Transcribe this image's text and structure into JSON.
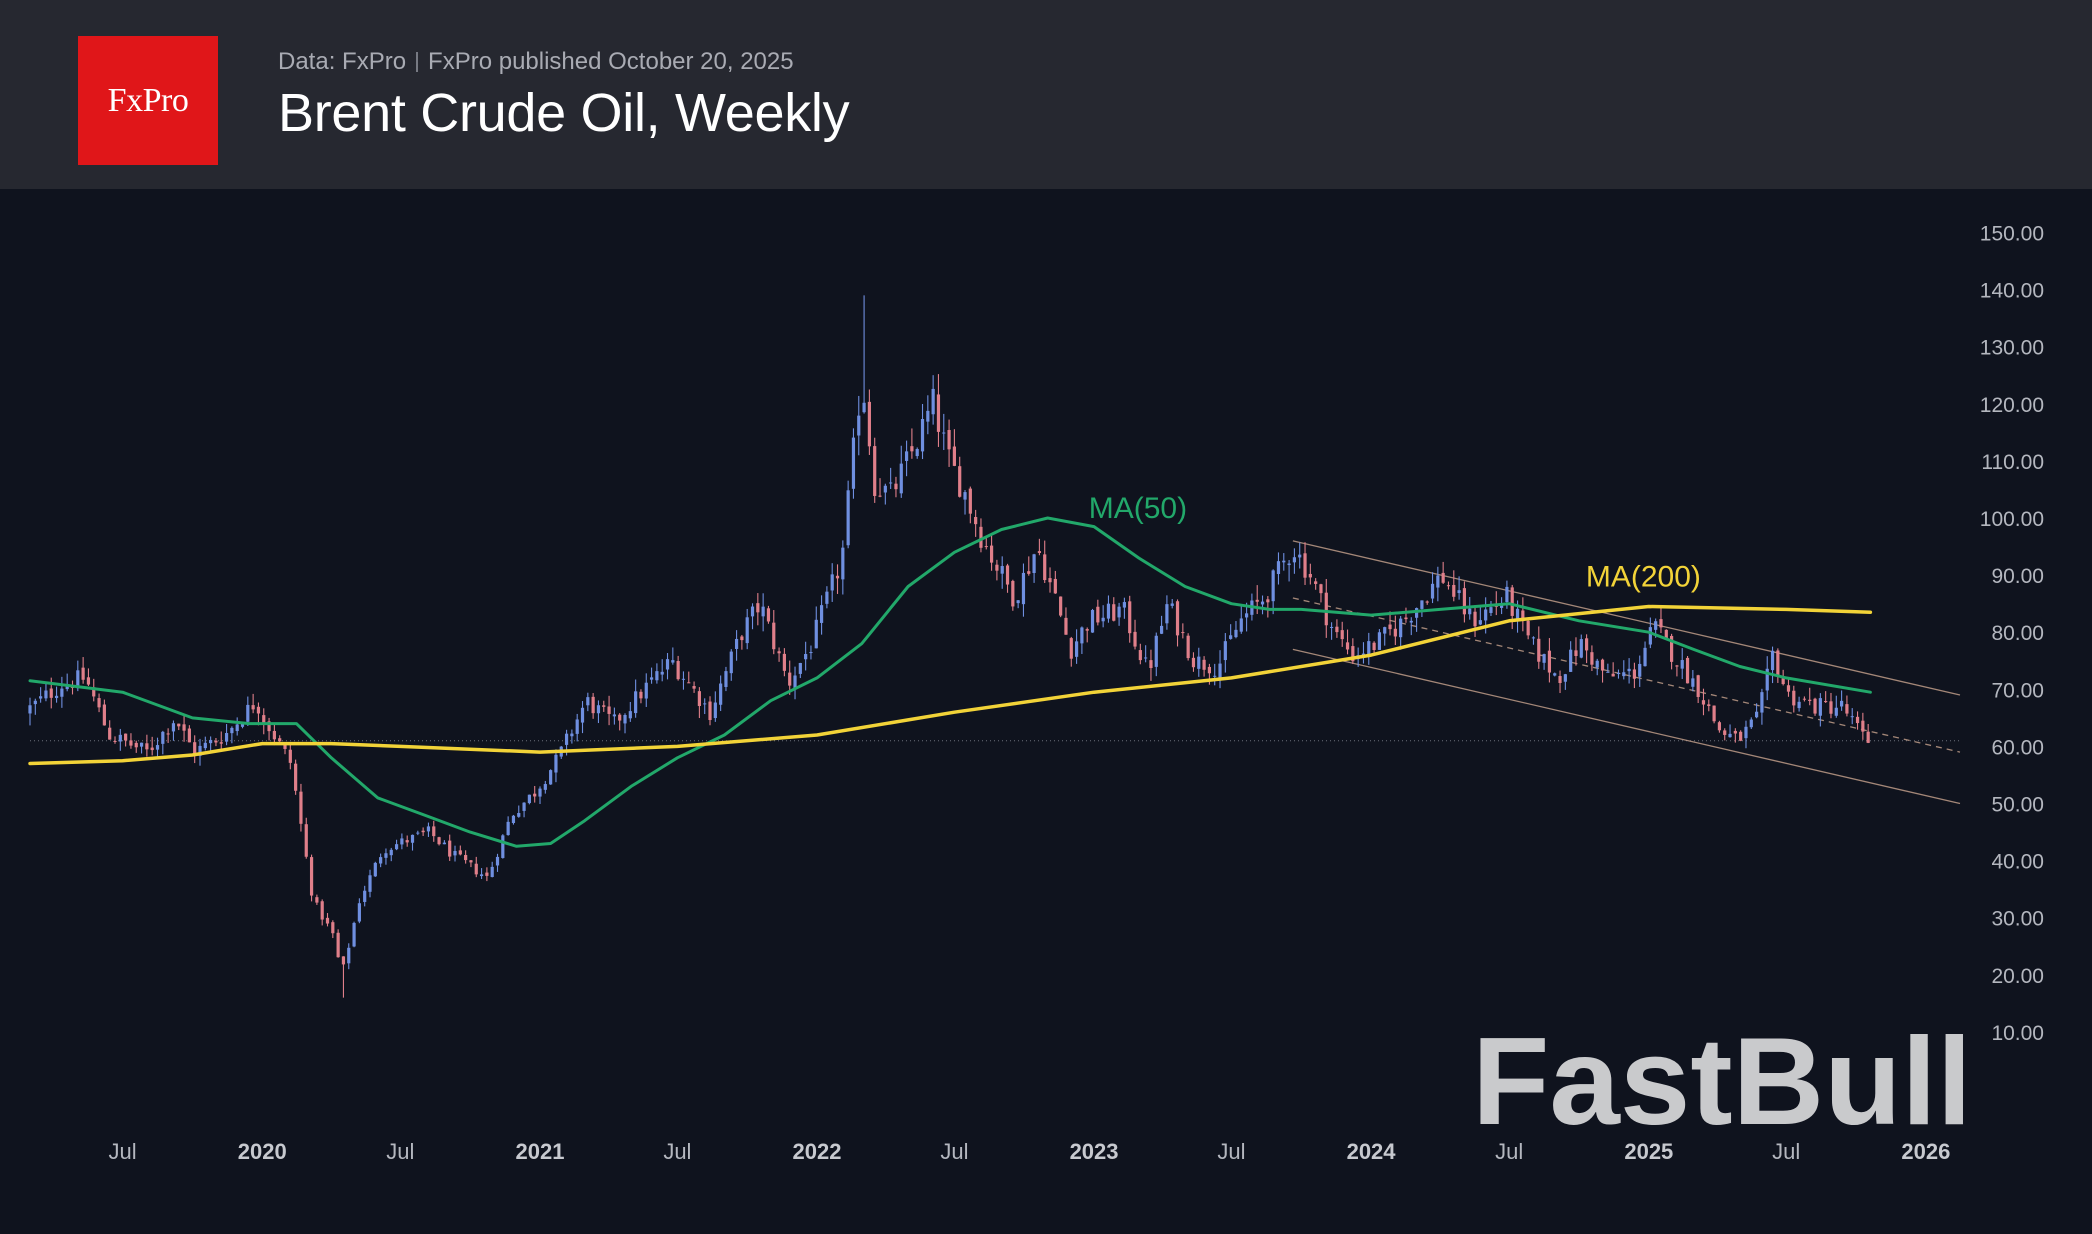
{
  "header": {
    "logo_text": "FxPro",
    "data_source": "Data: FxPro",
    "published": "FxPro published October 20, 2025",
    "title": "Brent Crude Oil, Weekly"
  },
  "watermark": "FastBull",
  "colors": {
    "background": "#0f131e",
    "header_bg": "#262830",
    "logo_bg": "#e01619",
    "ma50": "#22a86a",
    "ma200": "#f2d338",
    "candle_up": "#6f8fe0",
    "candle_down": "#e07f8a",
    "channel": "#c9a58e",
    "axis_text": "#b4b7bf"
  },
  "chart_data": {
    "type": "candlestick",
    "title": "Brent Crude Oil, Weekly",
    "y_axis": {
      "position": "right",
      "ylim": [
        0,
        155
      ],
      "ticks": [
        "10.00",
        "20.00",
        "30.00",
        "40.00",
        "50.00",
        "60.00",
        "70.00",
        "80.00",
        "90.00",
        "100.00",
        "110.00",
        "120.00",
        "130.00",
        "140.00",
        "150.00"
      ]
    },
    "x_axis": {
      "range": [
        "2019-03-01",
        "2026-02-15"
      ],
      "ticks": [
        {
          "date": "2019-07-01",
          "label": "Jul"
        },
        {
          "date": "2020-01-01",
          "label": "2020"
        },
        {
          "date": "2020-07-01",
          "label": "Jul"
        },
        {
          "date": "2021-01-01",
          "label": "2021"
        },
        {
          "date": "2021-07-01",
          "label": "Jul"
        },
        {
          "date": "2022-01-01",
          "label": "2022"
        },
        {
          "date": "2022-07-01",
          "label": "Jul"
        },
        {
          "date": "2023-01-01",
          "label": "2023"
        },
        {
          "date": "2023-07-01",
          "label": "Jul"
        },
        {
          "date": "2024-01-01",
          "label": "2024"
        },
        {
          "date": "2024-07-01",
          "label": "Jul"
        },
        {
          "date": "2025-01-01",
          "label": "2025"
        },
        {
          "date": "2025-07-01",
          "label": "Jul"
        },
        {
          "date": "2026-01-01",
          "label": "2026"
        }
      ]
    },
    "price_path": [
      [
        "2019-03-01",
        66
      ],
      [
        "2019-04-20",
        71
      ],
      [
        "2019-05-20",
        72
      ],
      [
        "2019-06-20",
        62
      ],
      [
        "2019-08-10",
        59
      ],
      [
        "2019-09-15",
        65
      ],
      [
        "2019-10-10",
        59
      ],
      [
        "2019-11-20",
        62
      ],
      [
        "2019-12-31",
        68
      ],
      [
        "2020-01-10",
        65
      ],
      [
        "2020-02-15",
        57
      ],
      [
        "2020-03-15",
        33
      ],
      [
        "2020-04-10",
        27
      ],
      [
        "2020-04-22",
        20
      ],
      [
        "2020-05-15",
        33
      ],
      [
        "2020-06-15",
        42
      ],
      [
        "2020-08-15",
        45
      ],
      [
        "2020-09-15",
        41
      ],
      [
        "2020-10-31",
        37
      ],
      [
        "2020-12-01",
        48
      ],
      [
        "2021-01-01",
        52
      ],
      [
        "2021-02-01",
        58
      ],
      [
        "2021-03-10",
        68
      ],
      [
        "2021-04-15",
        64
      ],
      [
        "2021-06-01",
        71
      ],
      [
        "2021-07-01",
        75
      ],
      [
        "2021-08-20",
        66
      ],
      [
        "2021-10-01",
        80
      ],
      [
        "2021-10-25",
        85
      ],
      [
        "2021-12-01",
        71
      ],
      [
        "2022-01-01",
        78
      ],
      [
        "2022-02-10",
        93
      ],
      [
        "2022-03-08",
        125
      ],
      [
        "2022-03-25",
        106
      ],
      [
        "2022-04-15",
        104
      ],
      [
        "2022-05-15",
        112
      ],
      [
        "2022-06-10",
        120
      ],
      [
        "2022-07-01",
        110
      ],
      [
        "2022-07-20",
        105
      ],
      [
        "2022-08-15",
        96
      ],
      [
        "2022-09-25",
        86
      ],
      [
        "2022-10-25",
        95
      ],
      [
        "2022-11-20",
        85
      ],
      [
        "2022-12-08",
        77
      ],
      [
        "2023-01-01",
        82
      ],
      [
        "2023-02-15",
        84
      ],
      [
        "2023-03-20",
        73
      ],
      [
        "2023-04-15",
        85
      ],
      [
        "2023-05-20",
        75
      ],
      [
        "2023-06-20",
        74
      ],
      [
        "2023-07-20",
        82
      ],
      [
        "2023-08-20",
        86
      ],
      [
        "2023-09-27",
        95
      ],
      [
        "2023-10-20",
        90
      ],
      [
        "2023-11-20",
        80
      ],
      [
        "2023-12-15",
        76
      ],
      [
        "2024-01-15",
        78
      ],
      [
        "2024-02-20",
        82
      ],
      [
        "2024-04-10",
        90
      ],
      [
        "2024-05-20",
        82
      ],
      [
        "2024-07-05",
        86
      ],
      [
        "2024-08-05",
        78
      ],
      [
        "2024-09-10",
        72
      ],
      [
        "2024-10-10",
        78
      ],
      [
        "2024-11-15",
        72
      ],
      [
        "2024-12-20",
        73
      ],
      [
        "2025-01-15",
        81
      ],
      [
        "2025-02-15",
        75
      ],
      [
        "2025-03-15",
        70
      ],
      [
        "2025-04-10",
        63
      ],
      [
        "2025-05-05",
        61
      ],
      [
        "2025-06-01",
        65
      ],
      [
        "2025-06-20",
        76
      ],
      [
        "2025-07-10",
        69
      ],
      [
        "2025-08-15",
        67
      ],
      [
        "2025-09-20",
        67
      ],
      [
        "2025-10-20",
        61
      ]
    ],
    "series": [
      {
        "name": "MA(50)",
        "label_position": [
          "2022-12-25",
          100
        ],
        "values": [
          [
            "2019-03-01",
            71.5
          ],
          [
            "2019-07-01",
            69.5
          ],
          [
            "2019-10-01",
            65
          ],
          [
            "2019-12-15",
            64
          ],
          [
            "2020-02-15",
            64
          ],
          [
            "2020-04-01",
            58
          ],
          [
            "2020-06-01",
            51
          ],
          [
            "2020-08-01",
            48
          ],
          [
            "2020-10-01",
            45
          ],
          [
            "2020-12-01",
            42.5
          ],
          [
            "2021-01-15",
            43
          ],
          [
            "2021-03-01",
            47
          ],
          [
            "2021-05-01",
            53
          ],
          [
            "2021-07-01",
            58
          ],
          [
            "2021-09-01",
            62
          ],
          [
            "2021-11-01",
            68
          ],
          [
            "2022-01-01",
            72
          ],
          [
            "2022-03-01",
            78
          ],
          [
            "2022-05-01",
            88
          ],
          [
            "2022-07-01",
            94
          ],
          [
            "2022-09-01",
            98
          ],
          [
            "2022-11-01",
            100
          ],
          [
            "2023-01-01",
            98.5
          ],
          [
            "2023-03-01",
            93
          ],
          [
            "2023-05-01",
            88
          ],
          [
            "2023-07-01",
            85
          ],
          [
            "2023-08-20",
            84
          ],
          [
            "2023-10-01",
            84
          ],
          [
            "2024-01-01",
            83
          ],
          [
            "2024-04-01",
            84
          ],
          [
            "2024-07-01",
            85
          ],
          [
            "2024-10-01",
            82
          ],
          [
            "2025-01-01",
            80
          ],
          [
            "2025-03-01",
            77
          ],
          [
            "2025-05-01",
            74
          ],
          [
            "2025-07-01",
            72
          ],
          [
            "2025-10-20",
            69.5
          ]
        ]
      },
      {
        "name": "MA(200)",
        "label_position": [
          "2024-10-10",
          88
        ],
        "values": [
          [
            "2019-03-01",
            57
          ],
          [
            "2019-07-01",
            57.5
          ],
          [
            "2019-10-01",
            58.5
          ],
          [
            "2020-01-01",
            60.5
          ],
          [
            "2020-04-01",
            60.5
          ],
          [
            "2020-07-01",
            60
          ],
          [
            "2021-01-01",
            59
          ],
          [
            "2021-07-01",
            60
          ],
          [
            "2022-01-01",
            62
          ],
          [
            "2022-07-01",
            66
          ],
          [
            "2023-01-01",
            69.5
          ],
          [
            "2023-07-01",
            72
          ],
          [
            "2024-01-01",
            76
          ],
          [
            "2024-07-01",
            82
          ],
          [
            "2025-01-01",
            84.5
          ],
          [
            "2025-07-01",
            84
          ],
          [
            "2025-10-20",
            83.5
          ]
        ]
      }
    ],
    "channel": {
      "upper": [
        [
          "2023-09-20",
          96
        ],
        [
          "2026-02-15",
          69
        ]
      ],
      "middle": [
        [
          "2023-09-20",
          86
        ],
        [
          "2026-02-15",
          59
        ]
      ],
      "lower": [
        [
          "2023-09-20",
          77
        ],
        [
          "2026-02-15",
          50
        ]
      ]
    },
    "reference_level": 61,
    "grid": false,
    "legend": "none"
  }
}
